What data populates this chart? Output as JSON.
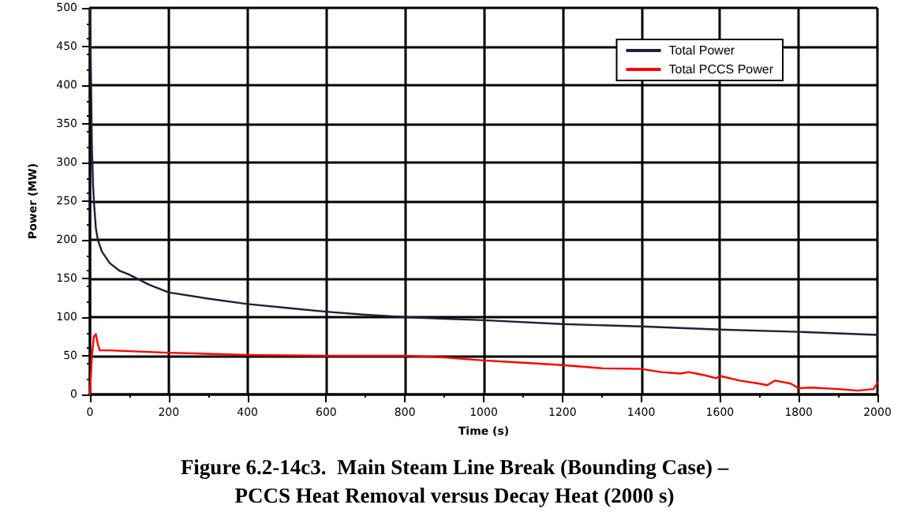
{
  "chart_data": {
    "type": "line",
    "title": "Figure 6.2-14c3.  Main Steam Line Break (Bounding Case) –\nPCCS Heat Removal versus Decay Heat (2000 s)",
    "xlabel": "Time (s)",
    "ylabel": "Power (MW)",
    "xlim": [
      0,
      2000
    ],
    "xticks": [
      0,
      200,
      400,
      600,
      800,
      1000,
      1200,
      1400,
      1600,
      1800,
      2000
    ],
    "ylim": [
      0,
      500
    ],
    "yticks": [
      0,
      50,
      100,
      150,
      200,
      250,
      300,
      350,
      400,
      450,
      500
    ],
    "grid": true,
    "legend": "top right",
    "marker": "none",
    "line_style": "solid",
    "series": [
      {
        "name": "Total Power",
        "color": "#2a1a3a",
        "x": [
          0,
          3,
          5,
          8,
          10,
          15,
          20,
          30,
          50,
          75,
          100,
          150,
          200,
          300,
          400,
          500,
          600,
          700,
          800,
          900,
          1000,
          1200,
          1400,
          1600,
          1800,
          2000
        ],
        "values": [
          500,
          400,
          320,
          270,
          250,
          215,
          200,
          185,
          170,
          160,
          155,
          142,
          132,
          124,
          117,
          112,
          107,
          103,
          100,
          98,
          96,
          91,
          88,
          84,
          81,
          77
        ]
      },
      {
        "name": "Total PCCS Power",
        "color": "#ff0000",
        "x": [
          0,
          5,
          10,
          15,
          20,
          25,
          50,
          100,
          200,
          400,
          600,
          800,
          900,
          1000,
          1100,
          1200,
          1300,
          1400,
          1450,
          1500,
          1520,
          1560,
          1590,
          1600,
          1650,
          1700,
          1720,
          1740,
          1780,
          1800,
          1830,
          1900,
          1950,
          1990,
          2000
        ],
        "values": [
          0,
          50,
          75,
          78,
          65,
          57,
          57,
          56,
          54,
          51,
          50,
          50,
          48,
          44,
          41,
          38,
          34,
          33,
          29,
          27,
          29,
          25,
          21,
          24,
          18,
          14,
          12,
          18,
          14,
          8,
          9,
          7,
          5,
          7,
          15
        ]
      }
    ]
  }
}
